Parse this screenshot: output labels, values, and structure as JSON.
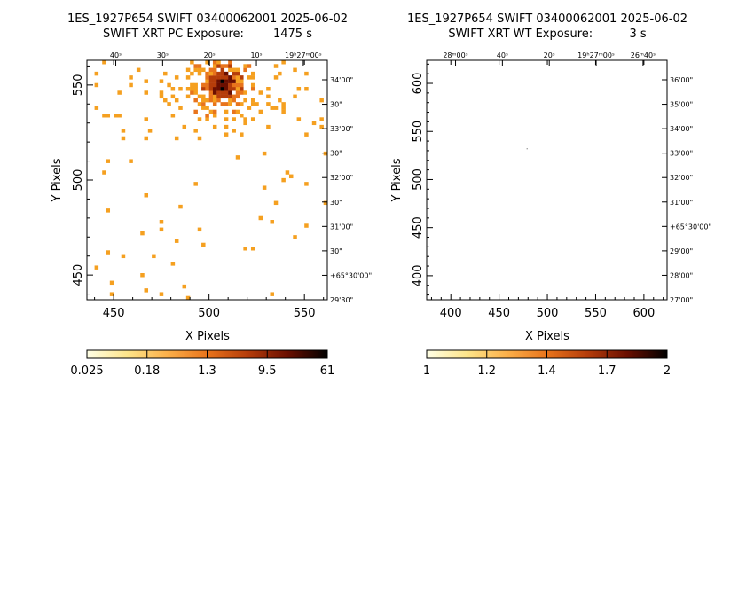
{
  "chart_data": [
    {
      "type": "heatmap",
      "title": "1ES_1927P654 SWIFT 03400062001 2025-06-02",
      "subtitle": "SWIFT XRT PC Exposure:        1475 s",
      "xlabel": "X Pixels",
      "ylabel": "Y Pixels",
      "xlim": [
        436,
        562
      ],
      "ylim": [
        437,
        563
      ],
      "x_ticks": [
        450,
        500,
        550
      ],
      "y_ticks": [
        450,
        500,
        550
      ],
      "ra_ticks": [
        "40ˢ",
        "30ˢ",
        "20ˢ",
        "10ˢ",
        "19ʰ27ᵐ00ˢ"
      ],
      "dec_ticks": [
        "34'00\"",
        "30\"",
        "33'00\"",
        "30\"",
        "32'00\"",
        "30\"",
        "31'00\"",
        "30\"",
        "+65°30'00\"",
        "29'30\""
      ],
      "colorbar": {
        "labels": [
          "0.025",
          "0.18",
          "1.3",
          "9.5",
          "61"
        ],
        "colors": [
          "#ffffe6",
          "#fde58a",
          "#fbb04a",
          "#e8741c",
          "#b53d0a",
          "#6b0f00",
          "#000000"
        ]
      },
      "source_center": [
        506,
        549
      ],
      "grid": false
    },
    {
      "type": "heatmap",
      "title": "1ES_1927P654 SWIFT 03400062001 2025-06-02",
      "subtitle": "SWIFT XRT WT Exposure:          3 s",
      "xlabel": "X Pixels",
      "ylabel": "Y Pixels",
      "xlim": [
        375,
        624
      ],
      "ylim": [
        375,
        624
      ],
      "x_ticks": [
        400,
        450,
        500,
        550,
        600
      ],
      "y_ticks": [
        400,
        450,
        500,
        550,
        600
      ],
      "ra_ticks": [
        "28ᵐ00ˢ",
        "40ˢ",
        "20ˢ",
        "19ʰ27ᵐ00ˢ",
        "26ᵐ40ˢ"
      ],
      "dec_ticks": [
        "36'00\"",
        "35'00\"",
        "34'00\"",
        "33'00\"",
        "32'00\"",
        "31'00\"",
        "+65°30'00\"",
        "29'00\"",
        "28'00\"",
        "27'00\""
      ],
      "colorbar": {
        "labels": [
          "1",
          "1.2",
          "1.4",
          "1.7",
          "2"
        ],
        "colors": [
          "#ffffe6",
          "#fde58a",
          "#fbb04a",
          "#e8741c",
          "#b53d0a",
          "#6b0f00",
          "#000000"
        ]
      },
      "source_center": [
        479,
        532
      ],
      "grid": false
    }
  ]
}
